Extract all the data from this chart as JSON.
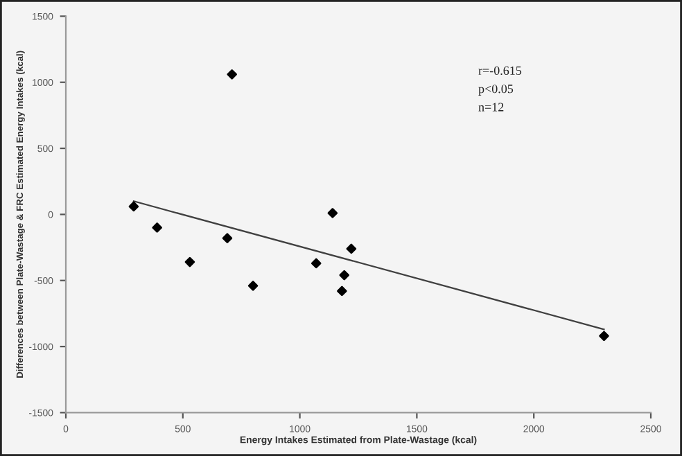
{
  "chart_data": {
    "type": "scatter",
    "xlabel": "Energy Intakes Estimated from Plate-Wastage (kcal)",
    "ylabel": "Differences between Plate-Wastage & FRC Estimated Energy Intakes (kcal)",
    "xlim": [
      0,
      2500
    ],
    "xticks": [
      0,
      500,
      1000,
      1500,
      2000,
      2500
    ],
    "ylim": [
      -1500,
      1500
    ],
    "yticks": [
      -1500,
      -1000,
      -500,
      0,
      500,
      1000,
      1500
    ],
    "grid": false,
    "series": [
      {
        "color": "#000000",
        "marker": "diamond",
        "x": [
          290,
          390,
          530,
          690,
          710,
          800,
          1070,
          1140,
          1220,
          1190,
          1180,
          2300
        ],
        "values": [
          60,
          -100,
          -360,
          -180,
          1060,
          -540,
          -370,
          10,
          -260,
          -460,
          -580,
          -920
        ]
      },
      {
        "type": "line",
        "color": "#404040",
        "x": [
          290,
          2300
        ],
        "values": [
          100,
          -870
        ]
      }
    ],
    "annotations": [
      "r=-0.615",
      "p<0.05",
      "n=12"
    ]
  }
}
